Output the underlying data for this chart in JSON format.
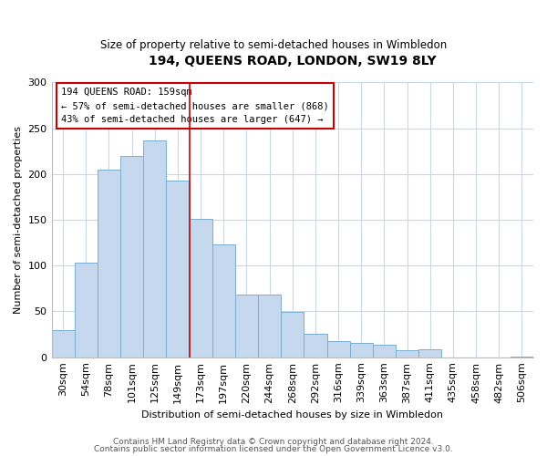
{
  "title": "194, QUEENS ROAD, LONDON, SW19 8LY",
  "subtitle": "Size of property relative to semi-detached houses in Wimbledon",
  "xlabel": "Distribution of semi-detached houses by size in Wimbledon",
  "ylabel": "Number of semi-detached properties",
  "categories": [
    "30sqm",
    "54sqm",
    "78sqm",
    "101sqm",
    "125sqm",
    "149sqm",
    "173sqm",
    "197sqm",
    "220sqm",
    "244sqm",
    "268sqm",
    "292sqm",
    "316sqm",
    "339sqm",
    "363sqm",
    "387sqm",
    "411sqm",
    "435sqm",
    "458sqm",
    "482sqm",
    "506sqm"
  ],
  "values": [
    30,
    103,
    205,
    220,
    237,
    193,
    151,
    123,
    68,
    68,
    49,
    26,
    18,
    16,
    14,
    8,
    9,
    0,
    0,
    0,
    1
  ],
  "bar_color": "#c5d8ed",
  "bar_edge_color": "#7aaed0",
  "vline_x": 5.5,
  "vline_color": "#cc0000",
  "annotation_title": "194 QUEENS ROAD: 159sqm",
  "annotation_line1": "← 57% of semi-detached houses are smaller (868)",
  "annotation_line2": "43% of semi-detached houses are larger (647) →",
  "annotation_box_color": "#cc0000",
  "ylim": [
    0,
    300
  ],
  "yticks": [
    0,
    50,
    100,
    150,
    200,
    250,
    300
  ],
  "footer1": "Contains HM Land Registry data © Crown copyright and database right 2024.",
  "footer2": "Contains public sector information licensed under the Open Government Licence v3.0.",
  "bg_color": "#ffffff",
  "grid_color": "#c8d8e8"
}
